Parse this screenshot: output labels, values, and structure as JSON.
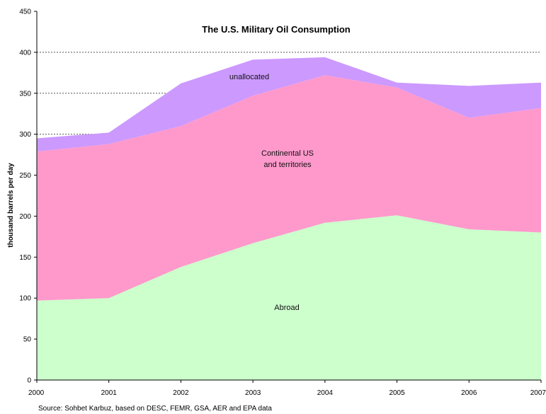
{
  "chart_data": {
    "type": "area",
    "stacked": true,
    "title": "The U.S. Military Oil Consumption",
    "ylabel": "thousand barrels per day",
    "xlabel": "",
    "x": [
      "2000",
      "2001",
      "2002",
      "2003",
      "2004",
      "2005",
      "2006",
      "2007"
    ],
    "ylim": [
      0,
      450
    ],
    "yticks": [
      0,
      50,
      100,
      150,
      200,
      250,
      300,
      350,
      400,
      450
    ],
    "grid": "dashed horizontal at 300, 350, 400",
    "series": [
      {
        "name": "Abroad",
        "color": "#ccffcc",
        "values": [
          97,
          100,
          138,
          167,
          192,
          201,
          184,
          180
        ]
      },
      {
        "name": "Continental US and territories",
        "color": "#ff99cc",
        "values": [
          182,
          188,
          172,
          180,
          180,
          156,
          136,
          152
        ]
      },
      {
        "name": "unallocated",
        "color": "#cc99ff",
        "values": [
          16,
          14,
          52,
          44,
          22,
          6,
          39,
          31
        ]
      }
    ],
    "area_labels": [
      {
        "series": 2,
        "lines": [
          "unallocated"
        ]
      },
      {
        "series": 1,
        "lines": [
          "Continental US",
          "and territories"
        ]
      },
      {
        "series": 0,
        "lines": [
          "Abroad"
        ]
      }
    ],
    "source": "Source: Sohbet Karbuz, based on DESC, FEMR, GSA, AER and EPA data"
  }
}
